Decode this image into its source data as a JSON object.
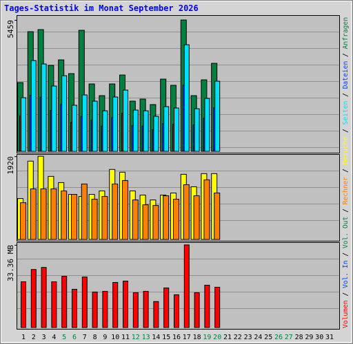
{
  "chart_data": {
    "type": "bar",
    "title": "Tages-Statistik im Monat September 2026",
    "categories": [
      "1",
      "2",
      "3",
      "4",
      "5",
      "6",
      "7",
      "8",
      "9",
      "10",
      "11",
      "12",
      "13",
      "14",
      "15",
      "16",
      "17",
      "18",
      "19",
      "20",
      "21",
      "22",
      "23",
      "24",
      "25",
      "26",
      "27",
      "28",
      "29",
      "30",
      "31"
    ],
    "highlight_categories": [
      "5",
      "6",
      "12",
      "13",
      "19",
      "20",
      "26",
      "27"
    ],
    "highlight_color": "#008040",
    "grid": true,
    "panels": [
      {
        "ylim": [
          0,
          5660
        ],
        "yticks": [
          5459
        ],
        "series": [
          {
            "name": "Anfragen",
            "color": "#008040",
            "values": [
              2858,
              4973,
              5059,
              3573,
              3801,
              3230,
              5030,
              2801,
              2315,
              2801,
              3172,
              2086,
              2172,
              1944,
              3001,
              2744,
              5459,
              2315,
              2972,
              3658,
              null,
              null,
              null,
              null,
              null,
              null,
              null,
              null,
              null,
              null,
              null
            ]
          },
          {
            "name": "Dateien",
            "color": "#0040ff",
            "values": [
              1480,
              2330,
              2250,
              1700,
              1950,
              1200,
              1450,
              1300,
              1050,
              1400,
              1580,
              1070,
              1050,
              900,
              1150,
              1120,
              2750,
              1100,
              1370,
              1810,
              null,
              null,
              null,
              null,
              null,
              null,
              null,
              null,
              null,
              null,
              null
            ]
          },
          {
            "name": "Seiten",
            "color": "#00e0ff",
            "values": [
              2229,
              3773,
              3630,
              2715,
              3144,
              1915,
              2344,
              2086,
              1686,
              2258,
              2544,
              1715,
              1686,
              1458,
              1858,
              1801,
              4430,
              1772,
              2201,
              2915,
              null,
              null,
              null,
              null,
              null,
              null,
              null,
              null,
              null,
              null,
              null
            ]
          }
        ]
      },
      {
        "ylim": [
          0,
          1970
        ],
        "yticks": [
          1920
        ],
        "series": [
          {
            "name": "Besuche",
            "color": "#ffff00",
            "values": [
              944,
              1808,
              1920,
              1456,
              1312,
              1040,
              992,
              1040,
              1120,
              1616,
              1552,
              1120,
              1024,
              912,
              1024,
              1072,
              1504,
              1216,
              1520,
              1520,
              null,
              null,
              null,
              null,
              null,
              null,
              null,
              null,
              null,
              null,
              null
            ]
          },
          {
            "name": "Rechner",
            "color": "#ff8000",
            "values": [
              848,
              1168,
              1168,
              1168,
              1120,
              1040,
              1280,
              928,
              992,
              1280,
              1360,
              912,
              800,
              784,
              1008,
              928,
              1264,
              1008,
              1376,
              1072,
              null,
              null,
              null,
              null,
              null,
              null,
              null,
              null,
              null,
              null,
              null
            ]
          }
        ]
      },
      {
        "ylim": [
          0,
          34.46
        ],
        "yticks": [
          {
            "value": 33.36,
            "label": "33.36 MB"
          }
        ],
        "series": [
          {
            "name": "Vol. Out",
            "color": "#008040",
            "values": [
              null,
              null,
              null,
              null,
              null,
              null,
              null,
              null,
              null,
              null,
              null,
              null,
              null,
              null,
              null,
              null,
              null,
              null,
              null,
              null,
              null,
              null,
              null,
              null,
              null,
              null,
              null,
              null,
              null,
              null,
              null
            ]
          },
          {
            "name": "Vol. In",
            "color": "#0040ff",
            "values": [
              null,
              null,
              null,
              null,
              null,
              null,
              null,
              null,
              null,
              null,
              null,
              null,
              null,
              null,
              null,
              null,
              null,
              null,
              null,
              null,
              null,
              null,
              null,
              null,
              null,
              null,
              null,
              null,
              null,
              null,
              null
            ]
          },
          {
            "name": "Volumen",
            "color": "#ff0000",
            "values": [
              18.47,
              23.43,
              24.26,
              18.47,
              20.68,
              15.44,
              20.4,
              14.34,
              14.61,
              18.2,
              18.75,
              14.06,
              14.61,
              10.48,
              15.99,
              13.23,
              33.36,
              14.06,
              17.09,
              16.27,
              null,
              null,
              null,
              null,
              null,
              null,
              null,
              null,
              null,
              null,
              null
            ]
          }
        ]
      }
    ]
  }
}
